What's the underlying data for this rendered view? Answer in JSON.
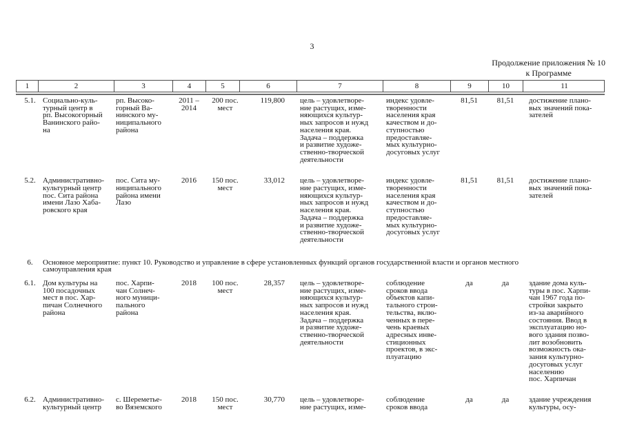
{
  "page": {
    "number": "3"
  },
  "continuation": {
    "line1": "Продолжение приложения № 10",
    "line2": "к Программе"
  },
  "table": {
    "header_numbers": [
      "1",
      "2",
      "3",
      "4",
      "5",
      "6",
      "7",
      "8",
      "9",
      "10",
      "11"
    ],
    "rows": [
      {
        "num": "5.1.",
        "name_lines": [
          "Социально-куль-",
          "турный центр в",
          "рп. Высокогорный",
          "Ванинского райо-",
          "на"
        ],
        "location_lines": [
          "рп. Высоко-",
          "горный Ва-",
          "нинского му-",
          "ниципального",
          "района"
        ],
        "years_lines": [
          "2011 –",
          "2014"
        ],
        "capacity_lines": [
          "200 пос.",
          "мест"
        ],
        "cost": "119,800",
        "goal_lines": [
          "цель – удовлетворе-",
          "ние растущих, изме-",
          "няющихся культур-",
          "ных запросов и нужд",
          "населения края.",
          "Задача – поддержка",
          "и развитие художе-",
          "ственно-творческой",
          "деятельности"
        ],
        "indicator_lines": [
          "индекс удовле-",
          "творенности",
          "населения края",
          "качеством и до-",
          "ступностью",
          "предоставляе-",
          "мых культурно-",
          "досуговых услуг"
        ],
        "plan_value": "81,51",
        "fact_value": "81,51",
        "result_lines": [
          "достижение плано-",
          "вых значений пока-",
          "зателей"
        ]
      },
      {
        "num": "5.2.",
        "name_lines": [
          "Административно-",
          "культурный центр",
          "пос. Сита района",
          "имени Лазо Хаба-",
          "ровского края"
        ],
        "location_lines": [
          "пос. Сита му-",
          "ниципального",
          "района имени",
          "Лазо"
        ],
        "years_lines": [
          "2016"
        ],
        "capacity_lines": [
          "150 пос.",
          "мест"
        ],
        "cost": "33,012",
        "goal_lines": [
          "цель – удовлетворе-",
          "ние растущих, изме-",
          "няющихся культур-",
          "ных запросов и нужд",
          "населения края.",
          "Задача – поддержка",
          "и развитие художе-",
          "ственно-творческой",
          "деятельности"
        ],
        "indicator_lines": [
          "индекс удовле-",
          "творенности",
          "населения края",
          "качеством и до-",
          "ступностью",
          "предоставляе-",
          "мых культурно-",
          "досуговых услуг"
        ],
        "plan_value": "81,51",
        "fact_value": "81,51",
        "result_lines": [
          "достижение плано-",
          "вых значений пока-",
          "зателей"
        ]
      },
      {
        "num": "6.1.",
        "name_lines": [
          "Дом культуры на",
          "100 посадочных",
          "мест в пос. Хар-",
          "пичан Солнечного",
          "района"
        ],
        "location_lines": [
          "пос. Харпи-",
          "чан Солнеч-",
          "ного муници-",
          "пального",
          "района"
        ],
        "years_lines": [
          "2018"
        ],
        "capacity_lines": [
          "100 пос.",
          "мест"
        ],
        "cost": "28,357",
        "goal_lines": [
          "цель – удовлетворе-",
          "ние растущих, изме-",
          "няющихся культур-",
          "ных запросов и нужд",
          "населения края.",
          "Задача – поддержка",
          "и развитие художе-",
          "ственно-творческой",
          "деятельности"
        ],
        "indicator_lines": [
          "соблюдение",
          "сроков ввода",
          "объектов капи-",
          "тального строи-",
          "тельства, вклю-",
          "ченных в пере-",
          "чень краевых",
          "адресных инве-",
          "стиционных",
          "проектов, в экс-",
          "плуатацию"
        ],
        "plan_value": "да",
        "fact_value": "да",
        "result_lines": [
          "здание дома куль-",
          "туры в пос. Харпи-",
          "чан 1967 года по-",
          "стройки закрыто",
          "из-за аварийного",
          "состояния. Ввод в",
          "эксплуатацию но-",
          "вого здания позво-",
          "лит возобновить",
          "возможность ока-",
          "зания культурно-",
          "досуговых услуг",
          "населению",
          "пос. Харпичан"
        ]
      },
      {
        "num": "6.2.",
        "name_lines": [
          "Административно-",
          "культурный центр"
        ],
        "location_lines": [
          "с. Шереметье-",
          "во Вяземского"
        ],
        "years_lines": [
          "2018"
        ],
        "capacity_lines": [
          "150 пос.",
          "мест"
        ],
        "cost": "30,770",
        "goal_lines": [
          "цель – удовлетворе-",
          "ние растущих, изме-"
        ],
        "indicator_lines": [
          "соблюдение",
          "сроков ввода"
        ],
        "plan_value": "да",
        "fact_value": "да",
        "result_lines": [
          "здание учреждения",
          "культуры, осу-"
        ]
      }
    ],
    "section": {
      "num": "6.",
      "text_lines": [
        "Основное мероприятие: пункт 10. Руководство и управление в сфере установленных функций органов государственной власти и органов местного",
        "самоуправления края"
      ]
    }
  }
}
